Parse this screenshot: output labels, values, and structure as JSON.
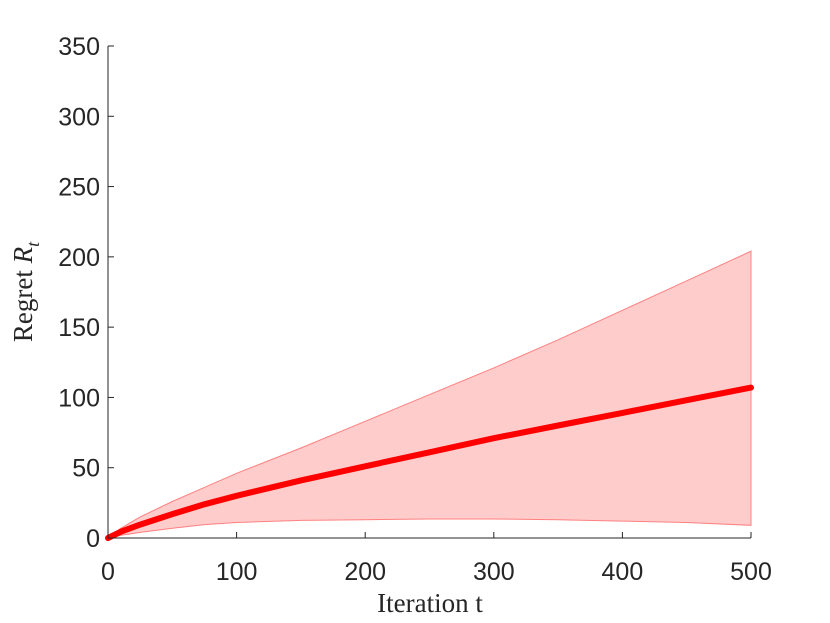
{
  "chart_data": {
    "type": "area",
    "xlabel": "Iteration t",
    "ylabel_main": "Regret ",
    "ylabel_var": "R",
    "ylabel_sub": "t",
    "xlim": [
      0,
      500
    ],
    "ylim": [
      0,
      350
    ],
    "xticks": [
      0,
      100,
      200,
      300,
      400,
      500
    ],
    "yticks": [
      0,
      50,
      100,
      150,
      200,
      250,
      300,
      350
    ],
    "grid": false,
    "colors": {
      "line": "#ff0000",
      "band_fill": "#ffcccc",
      "band_edge": "#ff8080",
      "axis": "#262626"
    },
    "series": [
      {
        "x": [
          0,
          10,
          25,
          50,
          75,
          100,
          150,
          200,
          250,
          300,
          350,
          400,
          450,
          500
        ],
        "y": [
          0,
          4.5,
          9.5,
          17,
          24,
          30,
          41,
          51,
          61,
          71,
          80,
          89,
          98,
          107
        ],
        "y_upper": [
          0,
          7,
          15,
          26,
          36,
          46,
          64,
          83,
          102,
          121,
          141,
          162,
          183,
          204
        ],
        "y_lower": [
          0,
          2,
          4,
          7,
          9.5,
          11,
          12.5,
          13,
          13.5,
          13.5,
          13,
          12,
          11,
          9
        ]
      }
    ]
  }
}
